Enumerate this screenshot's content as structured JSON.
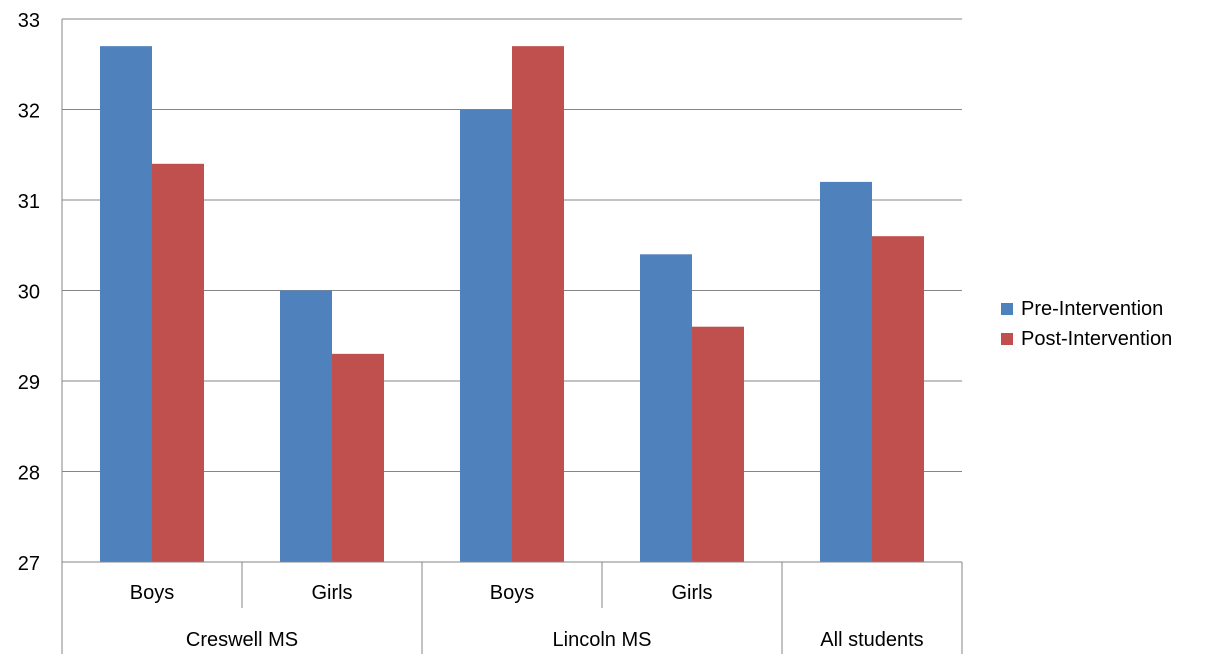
{
  "chart_data": {
    "type": "bar",
    "title": "",
    "xlabel": "",
    "ylabel": "",
    "ylim": [
      27,
      33
    ],
    "yticks": [
      27,
      28,
      29,
      30,
      31,
      32,
      33
    ],
    "grid": true,
    "legend_position": "right",
    "groups": [
      {
        "label": "Creswell MS",
        "categories": [
          "Boys",
          "Girls"
        ]
      },
      {
        "label": "Lincoln MS",
        "categories": [
          "Boys",
          "Girls"
        ]
      },
      {
        "label": "All students",
        "categories": [
          ""
        ]
      }
    ],
    "categories": [
      "Boys",
      "Girls",
      "Boys",
      "Girls",
      ""
    ],
    "series": [
      {
        "name": "Pre-Intervention",
        "color": "#4F81BD",
        "values": [
          32.7,
          30.0,
          32.0,
          30.4,
          31.2
        ]
      },
      {
        "name": "Post-Intervention",
        "color": "#C0504D",
        "values": [
          31.4,
          29.3,
          32.7,
          29.6,
          30.6
        ]
      }
    ]
  }
}
